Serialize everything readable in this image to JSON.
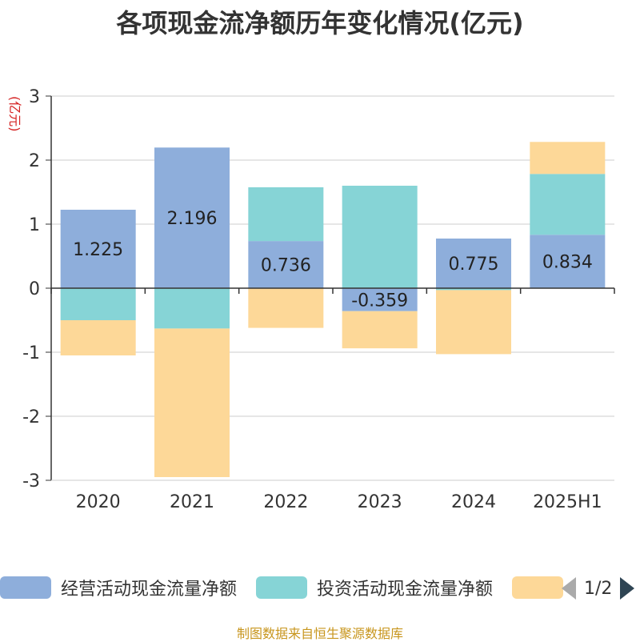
{
  "title": "各项现金流净额历年变化情况(亿元)",
  "unit_label": "(亿元)",
  "source": "制图数据来自恒生聚源数据库",
  "pager": {
    "text": "1/2"
  },
  "colors": {
    "operating": "#8eaedb",
    "investing": "#86d4d6",
    "financing": "#fdd898",
    "axis": "#333333",
    "grid": "#cccccc"
  },
  "legend": [
    {
      "label": "经营活动现金流量净额",
      "color": "#8eaedb"
    },
    {
      "label": "投资活动现金流量净额",
      "color": "#86d4d6"
    },
    {
      "label": "",
      "color": "#fdd898"
    }
  ],
  "chart_data": {
    "type": "bar",
    "stacked": true,
    "categories": [
      "2020",
      "2021",
      "2022",
      "2023",
      "2024",
      "2025H1"
    ],
    "series": [
      {
        "name": "经营活动现金流量净额",
        "values": [
          1.225,
          2.196,
          0.736,
          -0.359,
          0.775,
          0.834
        ],
        "show_labels": true
      },
      {
        "name": "投资活动现金流量净额",
        "values": [
          -0.5,
          -0.63,
          0.84,
          1.6,
          -0.03,
          0.95
        ],
        "show_labels": false
      },
      {
        "values": [
          -0.55,
          -2.32,
          -0.62,
          -0.58,
          -1.0,
          0.5
        ],
        "show_labels": false
      }
    ],
    "yticks": [
      3,
      2,
      1,
      0,
      -1,
      -2,
      -3
    ],
    "ylim": [
      -3,
      3
    ],
    "grid": true
  }
}
